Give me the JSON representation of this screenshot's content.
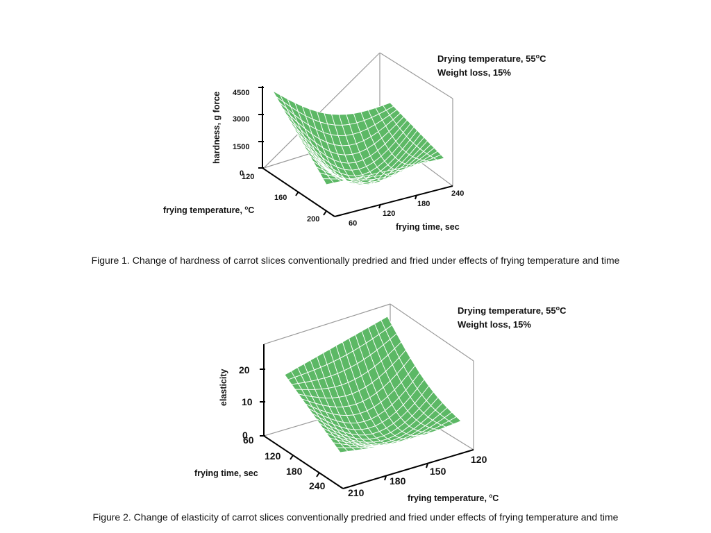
{
  "figures": [
    {
      "caption": "Figure 1. Change of hardness of carrot slices conventionally predried and fried under effects of frying temperature and time",
      "annotation": [
        "Drying temperature, 55",
        "o",
        "C",
        "Weight loss, 15%"
      ]
    },
    {
      "caption": "Figure 2. Change of elasticity of carrot slices conventionally predried and fried under effects of frying temperature and time",
      "annotation": [
        "Drying temperature, 55",
        "o",
        "C",
        "Weight loss, 15%"
      ]
    }
  ],
  "chart_data": [
    {
      "type": "surface",
      "title": "",
      "zlabel": "hardness, g force",
      "xlabel": [
        "frying temperature, ",
        "o",
        "C"
      ],
      "ylabel": "frying time, sec",
      "x_axis": {
        "name": "frying temperature",
        "unit": "°C",
        "range": [
          120,
          210
        ],
        "ticks": [
          120,
          160,
          200
        ]
      },
      "y_axis": {
        "name": "frying time",
        "unit": "sec",
        "range": [
          60,
          240
        ],
        "ticks": [
          60,
          120,
          180,
          240
        ]
      },
      "z_axis": {
        "range": [
          0,
          4500
        ],
        "ticks": [
          0,
          1500,
          3000,
          4500
        ]
      },
      "surface_points": [
        {
          "temperature": 120,
          "time": 60,
          "hardness": 4300
        },
        {
          "temperature": 165,
          "time": 150,
          "hardness": 400
        },
        {
          "temperature": 210,
          "time": 240,
          "hardness": 1100
        }
      ],
      "surface_color": "#5cb865",
      "grid_line_color": "#ffffff"
    },
    {
      "type": "surface",
      "title": "",
      "zlabel": "elasticity",
      "xlabel": "frying time, sec",
      "ylabel": [
        "frying temperature, ",
        "o",
        "C"
      ],
      "x_axis": {
        "name": "frying time",
        "unit": "sec",
        "range": [
          60,
          240
        ],
        "ticks": [
          60,
          120,
          180,
          240
        ]
      },
      "y_axis": {
        "name": "frying temperature",
        "unit": "°C",
        "range": [
          210,
          120
        ],
        "ticks": [
          210,
          180,
          150,
          120
        ]
      },
      "z_axis": {
        "range": [
          0,
          25
        ],
        "ticks": [
          0,
          10,
          20
        ]
      },
      "surface_points": [
        {
          "time": 60,
          "temperature": 210,
          "elasticity": 20
        },
        {
          "time": 60,
          "temperature": 120,
          "elasticity": 27
        },
        {
          "time": 240,
          "temperature": 120,
          "elasticity": 2.5
        },
        {
          "time": 240,
          "temperature": 210,
          "elasticity": 1.5
        }
      ],
      "surface_color": "#5cb865",
      "grid_line_color": "#ffffff"
    }
  ]
}
